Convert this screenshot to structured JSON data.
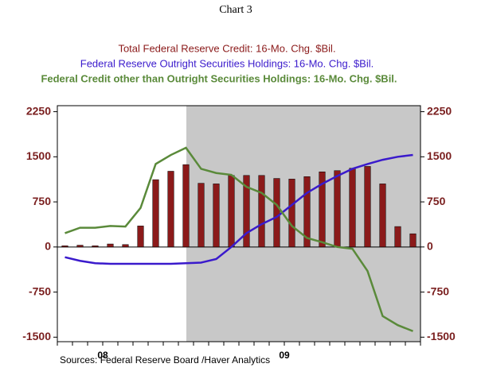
{
  "chart_data": {
    "type": "bar-line",
    "title": "Chart 3",
    "subtitles": [
      "Total Federal Reserve Credit: 16-Mo. Chg. $Bil.",
      "Federal Reserve Outright Securities Holdings: 16-Mo. Chg. $Bil.",
      "Federal Credit other than Outright Securities Holdings: 16-Mo. Chg. $Bil."
    ],
    "source": "Sources: Federal Reserve Board /Haver Analytics",
    "categories": [
      null,
      null,
      null,
      "08",
      null,
      null,
      null,
      null,
      null,
      null,
      null,
      null,
      null,
      null,
      null,
      "09",
      null,
      null,
      null,
      null,
      null,
      null,
      null,
      null
    ],
    "series": [
      {
        "name": "Total Federal Reserve Credit: 16-Mo. Chg. $Bil.",
        "color": "#8b1a1a",
        "kind": "bar",
        "values": [
          20,
          30,
          20,
          50,
          40,
          350,
          1120,
          1260,
          1370,
          1060,
          1050,
          1190,
          1190,
          1190,
          1140,
          1130,
          1170,
          1250,
          1270,
          1310,
          1340,
          1050,
          340,
          220
        ]
      },
      {
        "name": "Federal Reserve Outright Securities Holdings: 16-Mo. Chg. $Bil.",
        "color": "#3a1acc",
        "kind": "line",
        "values": [
          -170,
          -230,
          -270,
          -280,
          -280,
          -280,
          -280,
          -280,
          -270,
          -260,
          -200,
          0,
          230,
          380,
          500,
          700,
          900,
          1050,
          1180,
          1300,
          1380,
          1450,
          1500,
          1530
        ]
      },
      {
        "name": "Federal Credit other than Outright Securities Holdings: 16-Mo. Chg. $Bil.",
        "color": "#5a8a3a",
        "kind": "line",
        "values": [
          230,
          320,
          320,
          350,
          340,
          650,
          1380,
          1530,
          1650,
          1300,
          1230,
          1200,
          1000,
          900,
          700,
          350,
          150,
          80,
          0,
          -30,
          -400,
          -1150,
          -1300,
          -1400
        ]
      }
    ],
    "ylim": [
      -1575,
      2350
    ],
    "yticks": [
      -1500,
      -750,
      0,
      750,
      1500,
      2250
    ]
  }
}
